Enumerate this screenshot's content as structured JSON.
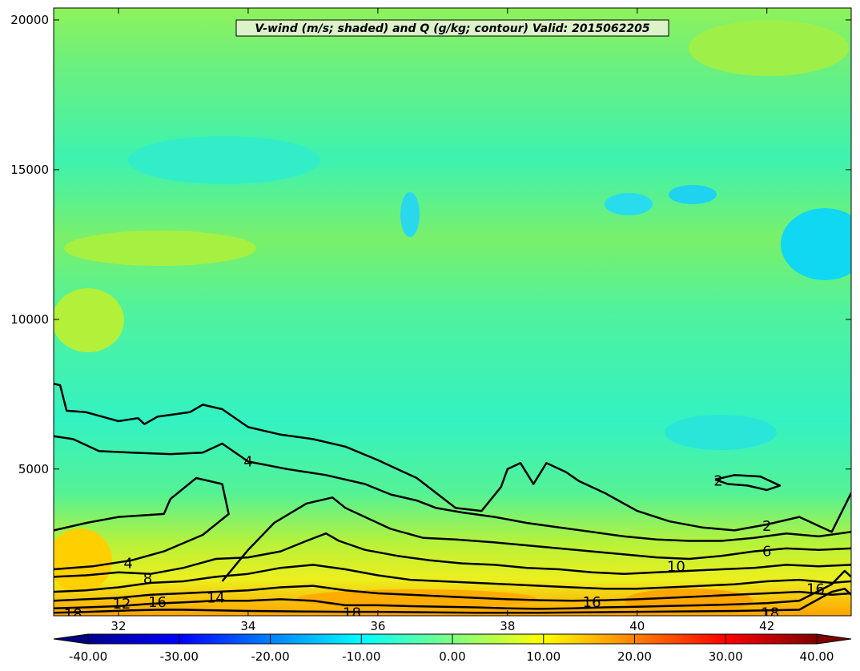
{
  "chart_data": {
    "type": "contour",
    "title": "V-wind (m/s; shaded) and Q (g/kg; contour) Valid: 2015062205",
    "xlim": [
      31.0,
      43.3
    ],
    "ylim": [
      100,
      20400
    ],
    "x_ticks": [
      "32",
      "34",
      "36",
      "38",
      "40",
      "42"
    ],
    "y_ticks": [
      "5000",
      "10000",
      "15000",
      "20000"
    ],
    "shaded_field": {
      "name": "V-wind (m/s)",
      "range": [
        -40,
        40
      ],
      "level_step": 2.5,
      "colorbar_ticks": [
        "-40.00",
        "-30.00",
        "-20.00",
        "-10.00",
        "0.00",
        "10.00",
        "20.00",
        "30.00",
        "40.00"
      ],
      "colormap": "jet"
    },
    "contour_field": {
      "name": "Q (g/kg)",
      "levels": [
        2,
        4,
        6,
        8,
        10,
        12,
        14,
        16,
        18
      ],
      "line_color": "#000000",
      "labels": [
        {
          "text": "4",
          "x": 34.0,
          "y": 5250
        },
        {
          "text": "2",
          "x": 41.25,
          "y": 4600
        },
        {
          "text": "2",
          "x": 42.0,
          "y": 3100
        },
        {
          "text": "6",
          "x": 42.0,
          "y": 2250
        },
        {
          "text": "10",
          "x": 40.6,
          "y": 1750
        },
        {
          "text": "16",
          "x": 42.75,
          "y": 1000
        },
        {
          "text": "16",
          "x": 39.3,
          "y": 550
        },
        {
          "text": "4",
          "x": 32.15,
          "y": 1850
        },
        {
          "text": "8",
          "x": 32.45,
          "y": 1350
        },
        {
          "text": "12",
          "x": 32.05,
          "y": 500
        },
        {
          "text": "16",
          "x": 32.6,
          "y": 550
        },
        {
          "text": "14",
          "x": 33.5,
          "y": 700
        },
        {
          "text": "18",
          "x": 35.6,
          "y": 200
        },
        {
          "text": "18",
          "x": 42.05,
          "y": 200
        },
        {
          "text": "18",
          "x": 31.3,
          "y": 150
        }
      ],
      "lines": [
        {
          "level": 2,
          "points": [
            [
              31.0,
              7850
            ],
            [
              31.1,
              7800
            ],
            [
              31.2,
              6950
            ],
            [
              31.5,
              6900
            ],
            [
              32.0,
              6600
            ],
            [
              32.3,
              6700
            ],
            [
              32.4,
              6500
            ],
            [
              32.6,
              6750
            ],
            [
              33.1,
              6900
            ],
            [
              33.3,
              7150
            ],
            [
              33.6,
              7000
            ],
            [
              34.0,
              6400
            ],
            [
              34.5,
              6150
            ],
            [
              35.0,
              6000
            ],
            [
              35.5,
              5750
            ],
            [
              36.0,
              5300
            ],
            [
              36.6,
              4700
            ],
            [
              36.9,
              4200
            ],
            [
              37.2,
              3700
            ],
            [
              37.6,
              3600
            ],
            [
              37.9,
              4400
            ],
            [
              38.0,
              5000
            ],
            [
              38.2,
              5200
            ],
            [
              38.4,
              4500
            ],
            [
              38.6,
              5200
            ],
            [
              38.9,
              4900
            ],
            [
              39.1,
              4600
            ],
            [
              39.5,
              4200
            ],
            [
              40.0,
              3600
            ],
            [
              40.5,
              3250
            ],
            [
              41.0,
              3050
            ],
            [
              41.5,
              2950
            ],
            [
              42.0,
              3150
            ],
            [
              42.5,
              3400
            ],
            [
              43.0,
              2900
            ],
            [
              43.3,
              4200
            ]
          ]
        },
        {
          "level": 4,
          "points": [
            [
              31.0,
              6100
            ],
            [
              31.3,
              6000
            ],
            [
              31.7,
              5600
            ],
            [
              32.2,
              5550
            ],
            [
              32.8,
              5500
            ],
            [
              33.3,
              5550
            ],
            [
              33.6,
              5850
            ],
            [
              34.0,
              5250
            ],
            [
              34.6,
              5000
            ],
            [
              35.2,
              4800
            ],
            [
              35.8,
              4500
            ],
            [
              36.2,
              4150
            ],
            [
              36.6,
              3950
            ],
            [
              36.9,
              3700
            ],
            [
              37.3,
              3550
            ],
            [
              37.8,
              3400
            ],
            [
              38.3,
              3200
            ],
            [
              38.8,
              3050
            ],
            [
              39.3,
              2900
            ],
            [
              39.8,
              2750
            ],
            [
              40.3,
              2650
            ],
            [
              40.8,
              2600
            ],
            [
              41.3,
              2600
            ],
            [
              41.8,
              2700
            ],
            [
              42.3,
              2850
            ],
            [
              42.8,
              2750
            ],
            [
              43.3,
              2900
            ]
          ]
        },
        {
          "level": 6,
          "points": [
            [
              31.0,
              2950
            ],
            [
              31.5,
              3200
            ],
            [
              32.0,
              3400
            ],
            [
              32.7,
              3500
            ],
            [
              32.8,
              4000
            ],
            [
              33.2,
              4700
            ],
            [
              33.6,
              4500
            ],
            [
              33.7,
              3500
            ],
            [
              33.3,
              2800
            ],
            [
              32.7,
              2250
            ],
            [
              32.2,
              1950
            ],
            [
              31.6,
              1750
            ],
            [
              31.0,
              1650
            ]
          ]
        },
        {
          "level": 8,
          "points": [
            [
              33.6,
              1250
            ],
            [
              34.0,
              2300
            ],
            [
              34.4,
              3200
            ],
            [
              34.9,
              3850
            ],
            [
              35.3,
              4050
            ],
            [
              35.5,
              3700
            ],
            [
              35.9,
              3300
            ],
            [
              36.2,
              3000
            ],
            [
              36.7,
              2700
            ],
            [
              37.2,
              2650
            ],
            [
              37.8,
              2550
            ],
            [
              38.3,
              2450
            ],
            [
              38.8,
              2350
            ],
            [
              39.3,
              2250
            ],
            [
              39.8,
              2150
            ],
            [
              40.3,
              2050
            ],
            [
              40.8,
              2000
            ],
            [
              41.3,
              2100
            ],
            [
              41.8,
              2250
            ],
            [
              42.3,
              2350
            ],
            [
              42.8,
              2300
            ],
            [
              43.3,
              2350
            ]
          ]
        },
        {
          "level": 10,
          "points": [
            [
              31.0,
              1400
            ],
            [
              31.5,
              1450
            ],
            [
              32.0,
              1550
            ],
            [
              32.5,
              1500
            ],
            [
              33.0,
              1700
            ],
            [
              33.5,
              2000
            ],
            [
              34.0,
              2050
            ],
            [
              34.5,
              2250
            ],
            [
              34.9,
              2600
            ],
            [
              35.2,
              2850
            ],
            [
              35.4,
              2600
            ],
            [
              35.8,
              2300
            ],
            [
              36.3,
              2100
            ],
            [
              36.8,
              1950
            ],
            [
              37.3,
              1850
            ],
            [
              37.8,
              1800
            ],
            [
              38.3,
              1700
            ],
            [
              38.8,
              1650
            ],
            [
              39.3,
              1550
            ],
            [
              39.8,
              1500
            ],
            [
              40.3,
              1550
            ],
            [
              40.8,
              1600
            ],
            [
              41.3,
              1650
            ],
            [
              41.8,
              1700
            ],
            [
              42.3,
              1800
            ],
            [
              42.8,
              1750
            ],
            [
              43.3,
              1800
            ]
          ]
        },
        {
          "level": 12,
          "points": [
            [
              31.0,
              900
            ],
            [
              31.5,
              950
            ],
            [
              32.0,
              1050
            ],
            [
              32.5,
              1200
            ],
            [
              33.0,
              1250
            ],
            [
              33.5,
              1400
            ],
            [
              34.0,
              1500
            ],
            [
              34.5,
              1700
            ],
            [
              35.0,
              1800
            ],
            [
              35.5,
              1650
            ],
            [
              36.0,
              1450
            ],
            [
              36.5,
              1300
            ],
            [
              37.0,
              1250
            ],
            [
              37.5,
              1200
            ],
            [
              38.0,
              1150
            ],
            [
              38.5,
              1100
            ],
            [
              39.0,
              1050
            ],
            [
              39.5,
              1000
            ],
            [
              40.0,
              1000
            ],
            [
              40.5,
              1050
            ],
            [
              41.0,
              1100
            ],
            [
              41.5,
              1150
            ],
            [
              42.0,
              1250
            ],
            [
              42.5,
              1300
            ],
            [
              43.0,
              1200
            ],
            [
              43.3,
              1250
            ]
          ]
        },
        {
          "level": 14,
          "points": [
            [
              31.0,
              600
            ],
            [
              31.5,
              650
            ],
            [
              32.0,
              700
            ],
            [
              32.5,
              800
            ],
            [
              33.0,
              850
            ],
            [
              33.5,
              900
            ],
            [
              34.0,
              950
            ],
            [
              34.5,
              1050
            ],
            [
              35.0,
              1100
            ],
            [
              35.5,
              950
            ],
            [
              36.0,
              850
            ],
            [
              36.5,
              800
            ],
            [
              37.0,
              750
            ],
            [
              37.5,
              700
            ],
            [
              38.0,
              650
            ],
            [
              38.5,
              620
            ],
            [
              39.0,
              600
            ],
            [
              39.5,
              620
            ],
            [
              40.0,
              650
            ],
            [
              40.5,
              700
            ],
            [
              41.0,
              750
            ],
            [
              41.5,
              800
            ],
            [
              42.0,
              850
            ],
            [
              42.5,
              900
            ],
            [
              43.0,
              800
            ],
            [
              43.3,
              850
            ]
          ]
        },
        {
          "level": 16,
          "points": [
            [
              31.0,
              350
            ],
            [
              31.5,
              380
            ],
            [
              32.0,
              420
            ],
            [
              32.5,
              500
            ],
            [
              33.0,
              550
            ],
            [
              33.5,
              600
            ],
            [
              34.0,
              600
            ],
            [
              34.5,
              650
            ],
            [
              35.0,
              600
            ],
            [
              35.5,
              450
            ],
            [
              36.0,
              450
            ],
            [
              36.5,
              420
            ],
            [
              37.0,
              400
            ],
            [
              37.5,
              380
            ],
            [
              38.0,
              350
            ],
            [
              38.5,
              330
            ],
            [
              39.0,
              350
            ],
            [
              39.5,
              380
            ],
            [
              40.0,
              400
            ],
            [
              40.5,
              430
            ],
            [
              41.0,
              450
            ],
            [
              41.5,
              480
            ],
            [
              42.0,
              520
            ],
            [
              42.5,
              600
            ],
            [
              43.0,
              1150
            ],
            [
              43.2,
              1600
            ],
            [
              43.3,
              1400
            ]
          ]
        },
        {
          "level": 18,
          "points": [
            [
              31.0,
              200
            ],
            [
              31.4,
              220
            ],
            [
              31.8,
              250
            ],
            [
              32.2,
              280
            ],
            [
              32.6,
              300
            ],
            [
              33.0,
              300
            ],
            [
              33.5,
              280
            ],
            [
              34.0,
              260
            ],
            [
              34.5,
              250
            ],
            [
              35.0,
              240
            ],
            [
              35.5,
              230
            ],
            [
              36.0,
              230
            ],
            [
              36.5,
              220
            ],
            [
              37.0,
              210
            ],
            [
              37.5,
              200
            ],
            [
              38.0,
              200
            ],
            [
              38.5,
              200
            ],
            [
              39.0,
              210
            ],
            [
              39.5,
              220
            ],
            [
              40.0,
              230
            ],
            [
              40.5,
              240
            ],
            [
              41.0,
              250
            ],
            [
              41.5,
              260
            ],
            [
              42.0,
              280
            ],
            [
              42.5,
              300
            ],
            [
              43.0,
              900
            ],
            [
              43.2,
              1000
            ],
            [
              43.3,
              800
            ]
          ]
        },
        {
          "level": 2,
          "points": [
            [
              41.2,
              4650
            ],
            [
              41.4,
              4500
            ],
            [
              41.7,
              4450
            ],
            [
              42.0,
              4300
            ],
            [
              42.2,
              4450
            ],
            [
              41.9,
              4750
            ],
            [
              41.5,
              4800
            ],
            [
              41.2,
              4650
            ]
          ]
        }
      ]
    }
  },
  "colors": {
    "background_dominant": "#47f2a8",
    "contour_lines": "#000000"
  }
}
